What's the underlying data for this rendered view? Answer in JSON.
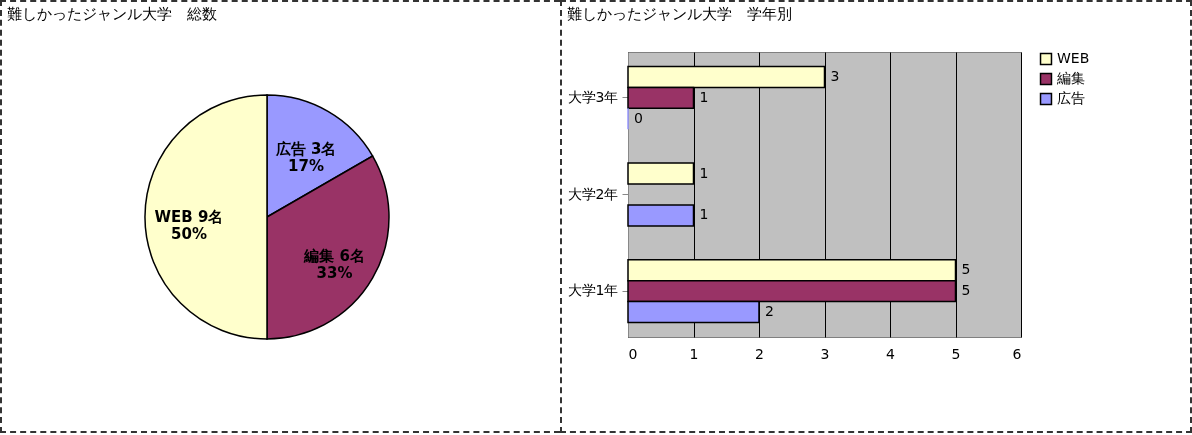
{
  "chart_data": [
    {
      "type": "pie",
      "title": "難しかったジャンル大学　総数",
      "categories": [
        "広告",
        "編集",
        "WEB"
      ],
      "values": [
        3,
        6,
        9
      ],
      "colors": [
        "#9999ff",
        "#993366",
        "#ffffcc"
      ],
      "value_labels": [
        "3名\n17%",
        "6名\n33%",
        "9名\n50%"
      ],
      "legend": false
    },
    {
      "type": "bar",
      "orientation": "horizontal",
      "title": "難しかったジャンル大学　学年別",
      "categories": [
        "大学3年",
        "大学2年",
        "大学1年"
      ],
      "series": [
        {
          "name": "WEB",
          "color": "#ffffcc",
          "values": [
            3,
            1,
            5
          ]
        },
        {
          "name": "編集",
          "color": "#993366",
          "values": [
            1,
            null,
            5
          ]
        },
        {
          "name": "広告",
          "color": "#9999ff",
          "values": [
            0,
            1,
            2
          ]
        }
      ],
      "xlim": [
        0,
        6
      ],
      "xticks": [
        0,
        1,
        2,
        3,
        4,
        5,
        6
      ],
      "grid": "x",
      "legend": "right",
      "data_labels": true
    }
  ]
}
